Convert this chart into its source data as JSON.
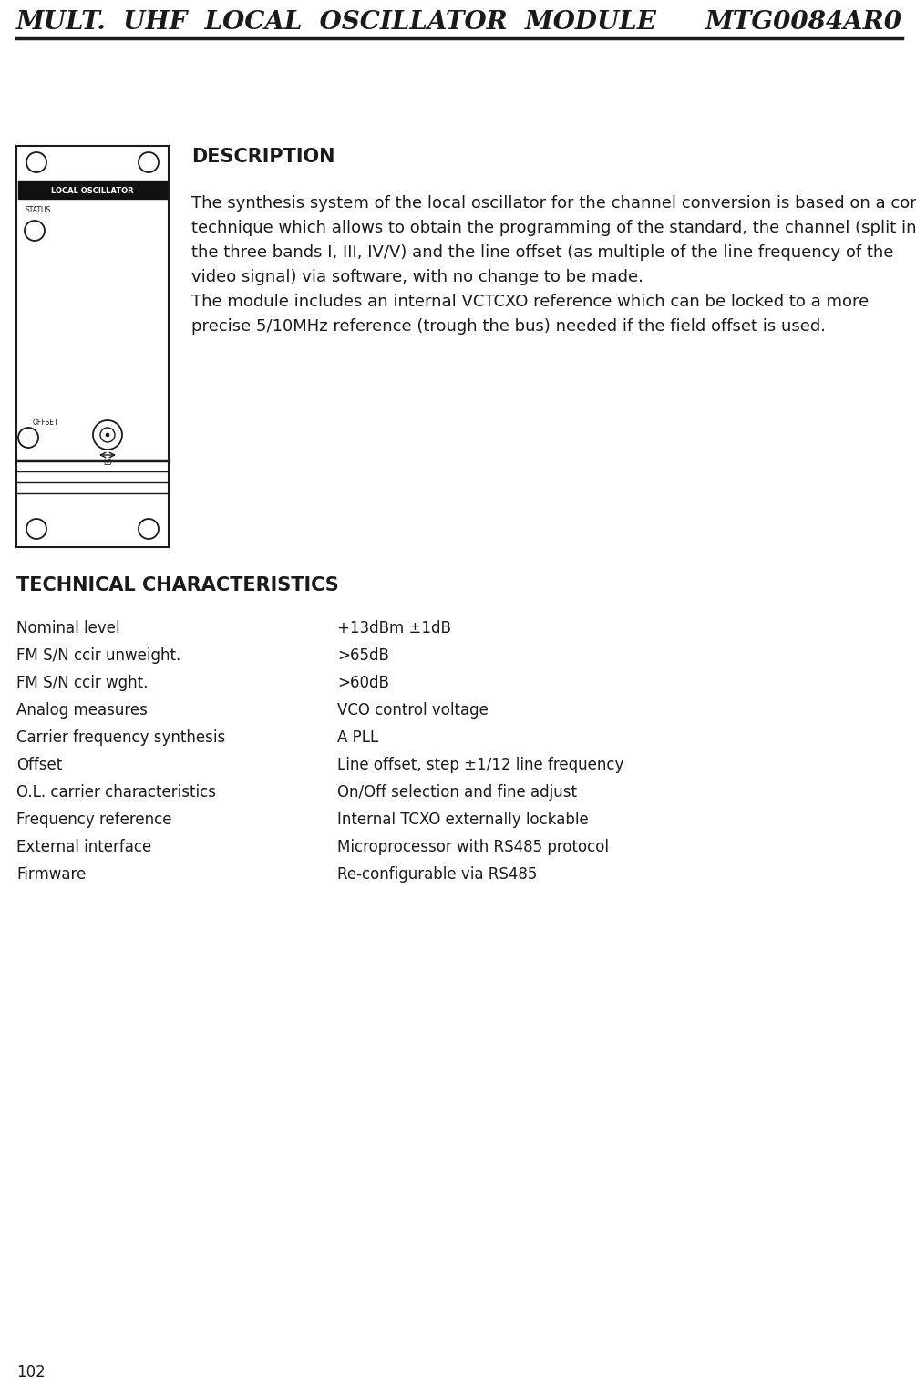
{
  "header_left": "MULT.  UHF  LOCAL  OSCILLATOR  MODULE",
  "header_right": "MTG0084AR0",
  "page_number": "102",
  "bg_color": "#ffffff",
  "header_text_color": "#1a1a1a",
  "description_title": "DESCRIPTION",
  "description_body": [
    "The synthesis system of the local oscillator for the channel conversion is based on a control",
    "technique which allows to obtain the programming of the standard, the channel (split into",
    "the three bands I, III, IV/V) and the line offset (as multiple of the line frequency of the",
    "video signal) via software, with no change to be made.",
    "The module includes an internal VCTCXO reference which can be locked to a more",
    "precise 5/10MHz reference (trough the bus) needed if the field offset is used."
  ],
  "tech_title": "TECHNICAL CHARACTERISTICS",
  "tech_rows": [
    [
      "Nominal level",
      "+13dBm ±1dB"
    ],
    [
      "FM S/N ccir unweight.",
      ">65dB"
    ],
    [
      "FM S/N ccir wght.",
      ">60dB"
    ],
    [
      "Analog measures",
      "VCO control voltage"
    ],
    [
      "Carrier frequency synthesis",
      "A PLL"
    ],
    [
      "Offset",
      "Line offset, step ±1/12 line frequency"
    ],
    [
      "O.L. carrier characteristics",
      "On/Off selection and fine adjust"
    ],
    [
      "Frequency reference",
      "Internal TCXO externally lockable"
    ],
    [
      "External interface",
      "Microprocessor with RS485 protocol"
    ],
    [
      "Firmware",
      "Re-configurable via RS485"
    ]
  ],
  "header_fontsize": 20,
  "desc_title_fontsize": 15,
  "desc_body_fontsize": 13,
  "tech_title_fontsize": 15,
  "tech_body_fontsize": 12
}
